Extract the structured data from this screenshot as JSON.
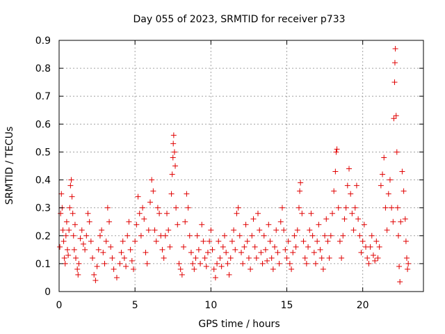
{
  "chart_data": {
    "type": "scatter",
    "title": "Day 055 of 2023, SRMTID for receiver p733",
    "xlabel": "GPS time / hours",
    "ylabel": "SRMTID / TECUs",
    "xlim": [
      0,
      24
    ],
    "ylim": [
      0,
      0.9
    ],
    "xticks": [
      0,
      5,
      10,
      15,
      20
    ],
    "xtick_labels": [
      "0",
      "5",
      "10",
      "15",
      "20"
    ],
    "yticks": [
      0,
      0.1,
      0.2,
      0.3,
      0.4,
      0.5,
      0.6,
      0.7,
      0.8,
      0.9
    ],
    "ytick_labels": [
      "0",
      "0.1",
      "0.2",
      "0.3",
      "0.4",
      "0.5",
      "0.6",
      "0.7",
      "0.8",
      "0.9"
    ],
    "grid": true,
    "marker": "plus",
    "marker_color": "#e00000",
    "series": [
      {
        "points": [
          [
            0.05,
            0.16
          ],
          [
            0.1,
            0.28
          ],
          [
            0.15,
            0.35
          ],
          [
            0.2,
            0.3
          ],
          [
            0.25,
            0.22
          ],
          [
            0.3,
            0.18
          ],
          [
            0.35,
            0.12
          ],
          [
            0.4,
            0.1
          ],
          [
            0.45,
            0.2
          ],
          [
            0.5,
            0.25
          ],
          [
            0.55,
            0.15
          ],
          [
            0.6,
            0.13
          ],
          [
            0.65,
            0.22
          ],
          [
            0.7,
            0.3
          ],
          [
            0.75,
            0.38
          ],
          [
            0.8,
            0.4
          ],
          [
            0.85,
            0.34
          ],
          [
            0.9,
            0.28
          ],
          [
            0.95,
            0.2
          ],
          [
            1.0,
            0.15
          ],
          [
            1.05,
            0.24
          ],
          [
            1.1,
            0.12
          ],
          [
            1.2,
            0.08
          ],
          [
            1.25,
            0.06
          ],
          [
            1.3,
            0.1
          ],
          [
            1.4,
            0.19
          ],
          [
            1.5,
            0.22
          ],
          [
            1.6,
            0.17
          ],
          [
            1.7,
            0.15
          ],
          [
            1.8,
            0.2
          ],
          [
            1.9,
            0.28
          ],
          [
            2.0,
            0.25
          ],
          [
            2.1,
            0.18
          ],
          [
            2.2,
            0.12
          ],
          [
            2.3,
            0.06
          ],
          [
            2.4,
            0.04
          ],
          [
            2.5,
            0.09
          ],
          [
            2.6,
            0.15
          ],
          [
            2.7,
            0.2
          ],
          [
            2.8,
            0.22
          ],
          [
            2.9,
            0.14
          ],
          [
            3.0,
            0.1
          ],
          [
            3.1,
            0.18
          ],
          [
            3.2,
            0.3
          ],
          [
            3.3,
            0.25
          ],
          [
            3.4,
            0.16
          ],
          [
            3.5,
            0.12
          ],
          [
            3.6,
            0.08
          ],
          [
            3.8,
            0.05
          ],
          [
            4.0,
            0.1
          ],
          [
            4.1,
            0.14
          ],
          [
            4.2,
            0.18
          ],
          [
            4.3,
            0.12
          ],
          [
            4.4,
            0.09
          ],
          [
            4.5,
            0.2
          ],
          [
            4.6,
            0.25
          ],
          [
            4.7,
            0.15
          ],
          [
            4.8,
            0.11
          ],
          [
            4.9,
            0.08
          ],
          [
            5.0,
            0.18
          ],
          [
            5.1,
            0.24
          ],
          [
            5.2,
            0.34
          ],
          [
            5.3,
            0.28
          ],
          [
            5.4,
            0.2
          ],
          [
            5.5,
            0.3
          ],
          [
            5.6,
            0.26
          ],
          [
            5.7,
            0.14
          ],
          [
            5.8,
            0.1
          ],
          [
            5.9,
            0.22
          ],
          [
            6.0,
            0.32
          ],
          [
            6.1,
            0.4
          ],
          [
            6.2,
            0.36
          ],
          [
            6.3,
            0.22
          ],
          [
            6.4,
            0.18
          ],
          [
            6.5,
            0.3
          ],
          [
            6.6,
            0.28
          ],
          [
            6.7,
            0.2
          ],
          [
            6.8,
            0.15
          ],
          [
            6.9,
            0.12
          ],
          [
            7.0,
            0.2
          ],
          [
            7.1,
            0.28
          ],
          [
            7.2,
            0.22
          ],
          [
            7.3,
            0.16
          ],
          [
            7.4,
            0.35
          ],
          [
            7.45,
            0.42
          ],
          [
            7.5,
            0.48
          ],
          [
            7.52,
            0.53
          ],
          [
            7.55,
            0.56
          ],
          [
            7.6,
            0.5
          ],
          [
            7.65,
            0.45
          ],
          [
            7.7,
            0.3
          ],
          [
            7.8,
            0.24
          ],
          [
            7.9,
            0.1
          ],
          [
            8.0,
            0.08
          ],
          [
            8.1,
            0.06
          ],
          [
            8.2,
            0.16
          ],
          [
            8.3,
            0.25
          ],
          [
            8.4,
            0.35
          ],
          [
            8.5,
            0.3
          ],
          [
            8.6,
            0.2
          ],
          [
            8.7,
            0.14
          ],
          [
            8.8,
            0.1
          ],
          [
            8.9,
            0.08
          ],
          [
            9.0,
            0.12
          ],
          [
            9.1,
            0.2
          ],
          [
            9.2,
            0.15
          ],
          [
            9.3,
            0.1
          ],
          [
            9.4,
            0.24
          ],
          [
            9.5,
            0.18
          ],
          [
            9.6,
            0.12
          ],
          [
            9.7,
            0.09
          ],
          [
            9.8,
            0.14
          ],
          [
            9.9,
            0.18
          ],
          [
            10.0,
            0.22
          ],
          [
            10.1,
            0.15
          ],
          [
            10.2,
            0.08
          ],
          [
            10.3,
            0.05
          ],
          [
            10.4,
            0.1
          ],
          [
            10.5,
            0.18
          ],
          [
            10.6,
            0.12
          ],
          [
            10.7,
            0.09
          ],
          [
            10.8,
            0.16
          ],
          [
            10.9,
            0.2
          ],
          [
            11.0,
            0.14
          ],
          [
            11.1,
            0.1
          ],
          [
            11.2,
            0.06
          ],
          [
            11.3,
            0.12
          ],
          [
            11.4,
            0.18
          ],
          [
            11.5,
            0.22
          ],
          [
            11.6,
            0.15
          ],
          [
            11.7,
            0.28
          ],
          [
            11.8,
            0.3
          ],
          [
            11.9,
            0.2
          ],
          [
            12.0,
            0.14
          ],
          [
            12.1,
            0.1
          ],
          [
            12.2,
            0.16
          ],
          [
            12.3,
            0.24
          ],
          [
            12.4,
            0.18
          ],
          [
            12.5,
            0.12
          ],
          [
            12.6,
            0.08
          ],
          [
            12.7,
            0.2
          ],
          [
            12.8,
            0.26
          ],
          [
            12.9,
            0.16
          ],
          [
            13.0,
            0.12
          ],
          [
            13.1,
            0.28
          ],
          [
            13.2,
            0.22
          ],
          [
            13.3,
            0.14
          ],
          [
            13.4,
            0.1
          ],
          [
            13.5,
            0.2
          ],
          [
            13.6,
            0.15
          ],
          [
            13.7,
            0.11
          ],
          [
            13.8,
            0.24
          ],
          [
            13.9,
            0.18
          ],
          [
            14.0,
            0.12
          ],
          [
            14.1,
            0.08
          ],
          [
            14.2,
            0.16
          ],
          [
            14.3,
            0.22
          ],
          [
            14.4,
            0.14
          ],
          [
            14.5,
            0.1
          ],
          [
            14.6,
            0.25
          ],
          [
            14.7,
            0.3
          ],
          [
            14.8,
            0.22
          ],
          [
            14.9,
            0.15
          ],
          [
            15.0,
            0.12
          ],
          [
            15.1,
            0.18
          ],
          [
            15.2,
            0.1
          ],
          [
            15.3,
            0.08
          ],
          [
            15.4,
            0.14
          ],
          [
            15.5,
            0.2
          ],
          [
            15.6,
            0.16
          ],
          [
            15.7,
            0.22
          ],
          [
            15.8,
            0.3
          ],
          [
            15.85,
            0.36
          ],
          [
            15.9,
            0.39
          ],
          [
            16.0,
            0.28
          ],
          [
            16.1,
            0.18
          ],
          [
            16.2,
            0.12
          ],
          [
            16.3,
            0.1
          ],
          [
            16.4,
            0.16
          ],
          [
            16.5,
            0.22
          ],
          [
            16.6,
            0.28
          ],
          [
            16.7,
            0.2
          ],
          [
            16.8,
            0.14
          ],
          [
            16.9,
            0.1
          ],
          [
            17.0,
            0.18
          ],
          [
            17.1,
            0.24
          ],
          [
            17.2,
            0.15
          ],
          [
            17.3,
            0.12
          ],
          [
            17.4,
            0.08
          ],
          [
            17.5,
            0.2
          ],
          [
            17.6,
            0.26
          ],
          [
            17.7,
            0.18
          ],
          [
            17.8,
            0.12
          ],
          [
            17.9,
            0.2
          ],
          [
            18.0,
            0.28
          ],
          [
            18.1,
            0.36
          ],
          [
            18.2,
            0.43
          ],
          [
            18.25,
            0.5
          ],
          [
            18.3,
            0.51
          ],
          [
            18.4,
            0.3
          ],
          [
            18.5,
            0.18
          ],
          [
            18.6,
            0.12
          ],
          [
            18.7,
            0.2
          ],
          [
            18.8,
            0.26
          ],
          [
            18.9,
            0.3
          ],
          [
            19.0,
            0.38
          ],
          [
            19.1,
            0.44
          ],
          [
            19.2,
            0.35
          ],
          [
            19.3,
            0.28
          ],
          [
            19.4,
            0.22
          ],
          [
            19.5,
            0.3
          ],
          [
            19.6,
            0.38
          ],
          [
            19.7,
            0.26
          ],
          [
            19.8,
            0.2
          ],
          [
            19.9,
            0.14
          ],
          [
            20.0,
            0.18
          ],
          [
            20.1,
            0.24
          ],
          [
            20.2,
            0.16
          ],
          [
            20.3,
            0.12
          ],
          [
            20.4,
            0.1
          ],
          [
            20.5,
            0.16
          ],
          [
            20.6,
            0.2
          ],
          [
            20.7,
            0.13
          ],
          [
            20.8,
            0.11
          ],
          [
            20.9,
            0.18
          ],
          [
            21.0,
            0.12
          ],
          [
            21.1,
            0.16
          ],
          [
            21.2,
            0.38
          ],
          [
            21.3,
            0.42
          ],
          [
            21.4,
            0.48
          ],
          [
            21.5,
            0.3
          ],
          [
            21.6,
            0.22
          ],
          [
            21.7,
            0.35
          ],
          [
            21.8,
            0.4
          ],
          [
            21.9,
            0.3
          ],
          [
            22.0,
            0.25
          ],
          [
            22.05,
            0.62
          ],
          [
            22.1,
            0.75
          ],
          [
            22.12,
            0.82
          ],
          [
            22.15,
            0.87
          ],
          [
            22.2,
            0.63
          ],
          [
            22.25,
            0.5
          ],
          [
            22.3,
            0.3
          ],
          [
            22.35,
            0.2
          ],
          [
            22.4,
            0.09
          ],
          [
            22.45,
            0.035
          ],
          [
            22.5,
            0.25
          ],
          [
            22.6,
            0.43
          ],
          [
            22.7,
            0.36
          ],
          [
            22.8,
            0.26
          ],
          [
            22.85,
            0.18
          ],
          [
            22.9,
            0.12
          ],
          [
            22.95,
            0.08
          ],
          [
            23.0,
            0.1
          ]
        ]
      }
    ]
  }
}
